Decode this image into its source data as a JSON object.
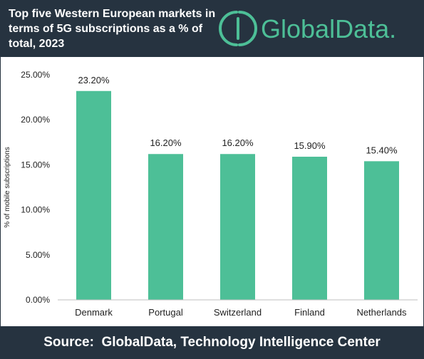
{
  "header": {
    "title": "Top five Western European markets in terms of 5G subscriptions as a % of total, 2023",
    "logo_text": "GlobalData."
  },
  "footer": {
    "source": "Source:  GlobalData, Technology Intelligence Center"
  },
  "colors": {
    "header_bg": "#263340",
    "bar": "#4dbf97",
    "logo": "#4dbf97"
  },
  "chart_data": {
    "type": "bar",
    "title": "Top five Western European markets in terms of 5G subscriptions as a % of total, 2023",
    "categories": [
      "Denmark",
      "Portugal",
      "Switzerland",
      "Finland",
      "Netherlands"
    ],
    "values": [
      23.2,
      16.2,
      16.2,
      15.9,
      15.4
    ],
    "data_labels": [
      "23.20%",
      "16.20%",
      "16.20%",
      "15.90%",
      "15.40%"
    ],
    "xlabel": "",
    "ylabel": "% of mobile subscriptions",
    "ylim": [
      0,
      25
    ],
    "yticks": [
      0,
      5,
      10,
      15,
      20,
      25
    ],
    "ytick_labels": [
      "0.00%",
      "5.00%",
      "10.00%",
      "15.00%",
      "20.00%",
      "25.00%"
    ],
    "grid": false,
    "legend": "none"
  }
}
